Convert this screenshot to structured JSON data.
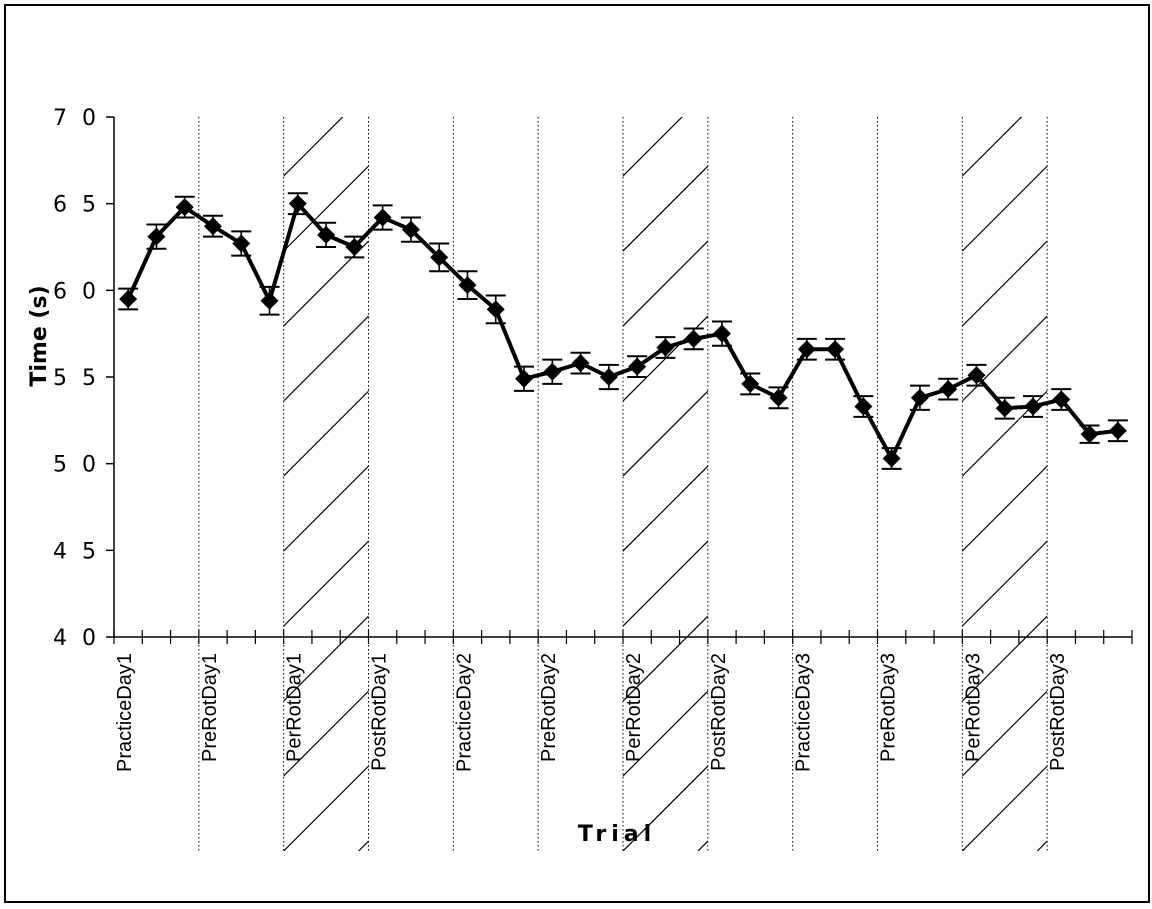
{
  "chart_data": {
    "type": "line",
    "title": "",
    "xlabel": "Trial",
    "ylabel": "Time   (s)",
    "ylim": [
      40,
      70
    ],
    "yticks": [
      "4 0",
      "4 5",
      "5 0",
      "5 5",
      "6 0",
      "6 5",
      "7 0"
    ],
    "grid": false,
    "legend": "none",
    "colors": {
      "line": "#000000",
      "marker": "#000000",
      "hatch": "#000000"
    },
    "phases": [
      {
        "label": "PracticeDay1",
        "hatched": false
      },
      {
        "label": "PreRotDay1",
        "hatched": false
      },
      {
        "label": "PerRotDay1",
        "hatched": true
      },
      {
        "label": "PostRotDay1",
        "hatched": false
      },
      {
        "label": "PracticeDay2",
        "hatched": false
      },
      {
        "label": "PreRotDay2",
        "hatched": false
      },
      {
        "label": "PerRotDay2",
        "hatched": true
      },
      {
        "label": "PostRotDay2",
        "hatched": false
      },
      {
        "label": "PracticeDay3",
        "hatched": false
      },
      {
        "label": "PreRotDay3",
        "hatched": false
      },
      {
        "label": "PerRotDay3",
        "hatched": true
      },
      {
        "label": "PostRotDay3",
        "hatched": false
      }
    ],
    "trials_per_phase": 3,
    "series": [
      {
        "values": [
          59.5,
          63.1,
          64.8,
          63.7,
          62.7,
          59.4,
          65.0,
          63.2,
          62.5,
          64.2,
          63.5,
          61.9,
          60.3,
          58.9,
          54.9,
          55.3,
          55.8,
          55.0,
          55.6,
          56.7,
          57.2,
          57.5,
          54.6,
          53.8,
          56.6,
          56.6,
          53.3,
          50.3,
          53.8,
          54.3,
          55.1,
          53.2,
          53.3,
          53.7,
          51.7,
          51.9
        ],
        "errors": [
          0.6,
          0.7,
          0.6,
          0.6,
          0.7,
          0.8,
          0.6,
          0.7,
          0.6,
          0.7,
          0.7,
          0.8,
          0.8,
          0.8,
          0.7,
          0.7,
          0.6,
          0.7,
          0.6,
          0.6,
          0.6,
          0.7,
          0.6,
          0.6,
          0.6,
          0.6,
          0.6,
          0.6,
          0.7,
          0.6,
          0.6,
          0.6,
          0.6,
          0.6,
          0.5,
          0.6
        ]
      }
    ]
  }
}
